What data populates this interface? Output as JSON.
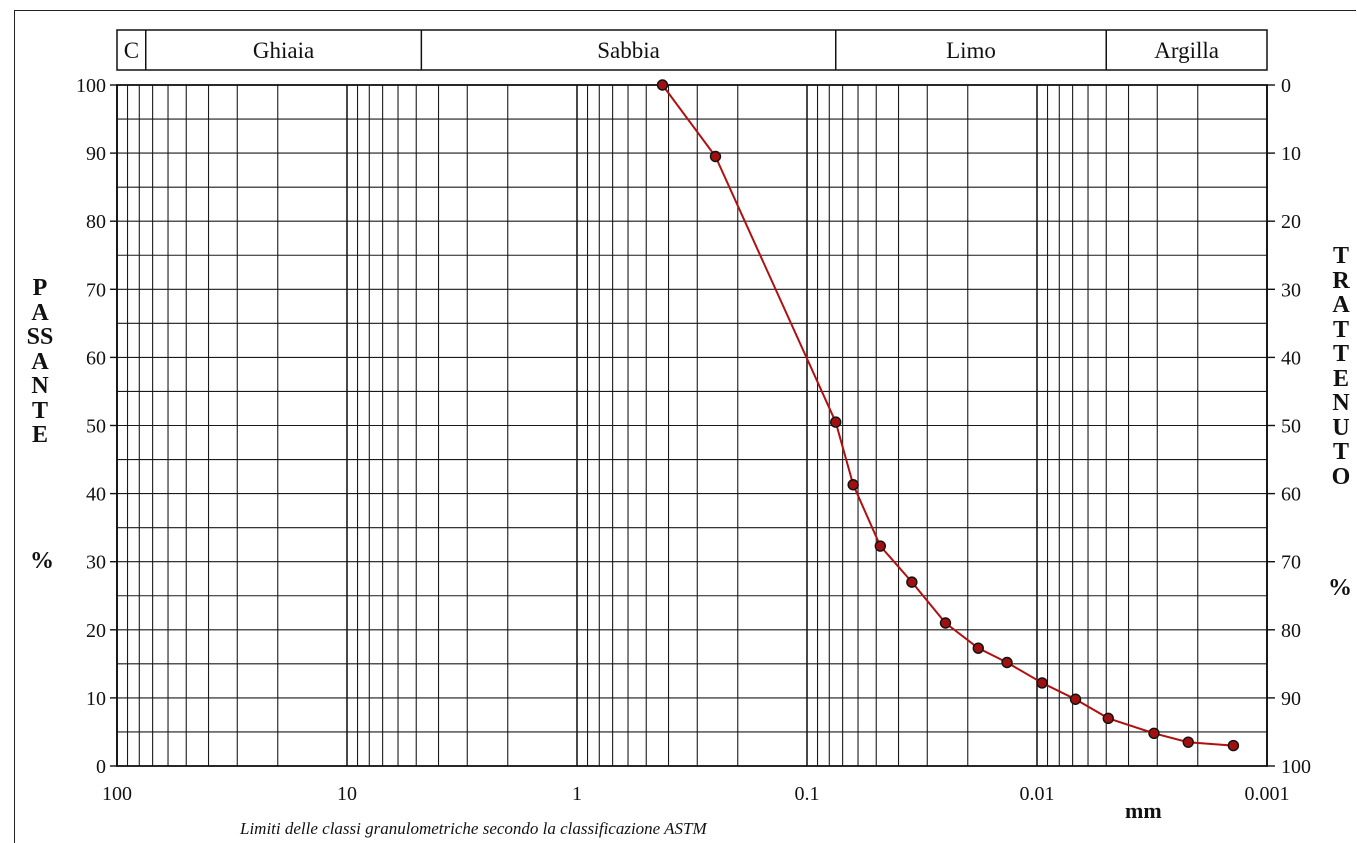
{
  "chart_data": {
    "type": "line",
    "xscale": "log",
    "xlim": [
      100,
      0.001
    ],
    "ylim": [
      0,
      100
    ],
    "x_ticks": [
      "100",
      "10",
      "1",
      "0.1",
      "0.01",
      "0.001"
    ],
    "y_ticks_left": [
      "0",
      "10",
      "20",
      "30",
      "40",
      "50",
      "60",
      "70",
      "80",
      "90",
      "100"
    ],
    "y_ticks_right": [
      "100",
      "90",
      "80",
      "70",
      "60",
      "50",
      "40",
      "30",
      "20",
      "10",
      "0"
    ],
    "ylabel_left": "PASSANTE",
    "ylabel_left_unit": "%",
    "ylabel_right": "TRATTENUTO",
    "ylabel_right_unit": "%",
    "xlabel": "mm",
    "caption": "Limiti delle classi granulometriche secondo la classificazione ASTM",
    "classes": [
      {
        "label": "C",
        "from": 100,
        "to": 75
      },
      {
        "label": "Ghiaia",
        "from": 75,
        "to": 4.75
      },
      {
        "label": "Sabbia",
        "from": 4.75,
        "to": 0.075
      },
      {
        "label": "Limo",
        "from": 0.075,
        "to": 0.005
      },
      {
        "label": "Argilla",
        "from": 0.005,
        "to": 0.001
      }
    ],
    "grid": true,
    "series": [
      {
        "color": "#b01010",
        "x": [
          0.425,
          0.25,
          0.075,
          0.063,
          0.048,
          0.035,
          0.025,
          0.018,
          0.0135,
          0.0095,
          0.0068,
          0.0049,
          0.0031,
          0.0022,
          0.0014
        ],
        "y": [
          100,
          89.5,
          50.5,
          41.3,
          32.3,
          27,
          21,
          17.3,
          15.2,
          12.2,
          9.8,
          7,
          4.8,
          3.5,
          3
        ]
      }
    ]
  }
}
